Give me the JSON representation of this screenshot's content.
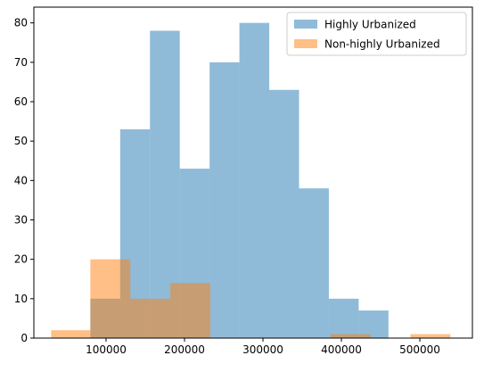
{
  "colors": {
    "highly_urbanized": "#1f77b4",
    "non_highly_urbanized": "#ff7f0e",
    "axis": "#000000",
    "background": "#ffffff",
    "legend_border": "#cccccc"
  },
  "chart_data": {
    "type": "bar",
    "subtype": "histogram-overlay",
    "title": "",
    "xlabel": "",
    "ylabel": "",
    "xlim": [
      8000,
      567000
    ],
    "ylim": [
      0,
      84
    ],
    "bar_opacity": 0.5,
    "grid": false,
    "legend_position": "top-right",
    "x_ticks": [
      100000,
      200000,
      300000,
      400000,
      500000
    ],
    "x_tick_labels": [
      "100000",
      "200000",
      "300000",
      "400000",
      "500000"
    ],
    "y_ticks": [
      0,
      10,
      20,
      30,
      40,
      50,
      60,
      70,
      80
    ],
    "y_tick_labels": [
      "0",
      "10",
      "20",
      "30",
      "40",
      "50",
      "60",
      "70",
      "80"
    ],
    "series": [
      {
        "name": "Highly Urbanized",
        "color": "#1f77b4",
        "bins": [
          {
            "x0": 80000,
            "x1": 118000,
            "count": 10
          },
          {
            "x0": 118000,
            "x1": 156000,
            "count": 53
          },
          {
            "x0": 156000,
            "x1": 194000,
            "count": 78
          },
          {
            "x0": 194000,
            "x1": 232000,
            "count": 43
          },
          {
            "x0": 232000,
            "x1": 270000,
            "count": 70
          },
          {
            "x0": 270000,
            "x1": 308000,
            "count": 80
          },
          {
            "x0": 308000,
            "x1": 346000,
            "count": 63
          },
          {
            "x0": 346000,
            "x1": 384000,
            "count": 38
          },
          {
            "x0": 384000,
            "x1": 422000,
            "count": 10
          },
          {
            "x0": 422000,
            "x1": 460000,
            "count": 7
          }
        ]
      },
      {
        "name": "Non-highly Urbanized",
        "color": "#ff7f0e",
        "bins": [
          {
            "x0": 30000,
            "x1": 80000,
            "count": 2
          },
          {
            "x0": 80000,
            "x1": 131000,
            "count": 20
          },
          {
            "x0": 131000,
            "x1": 182000,
            "count": 10
          },
          {
            "x0": 182000,
            "x1": 233000,
            "count": 14
          },
          {
            "x0": 233000,
            "x1": 284000,
            "count": 0
          },
          {
            "x0": 284000,
            "x1": 335000,
            "count": 0
          },
          {
            "x0": 335000,
            "x1": 386000,
            "count": 0
          },
          {
            "x0": 386000,
            "x1": 437000,
            "count": 1
          },
          {
            "x0": 437000,
            "x1": 488000,
            "count": 0
          },
          {
            "x0": 488000,
            "x1": 539000,
            "count": 1
          }
        ]
      }
    ]
  }
}
